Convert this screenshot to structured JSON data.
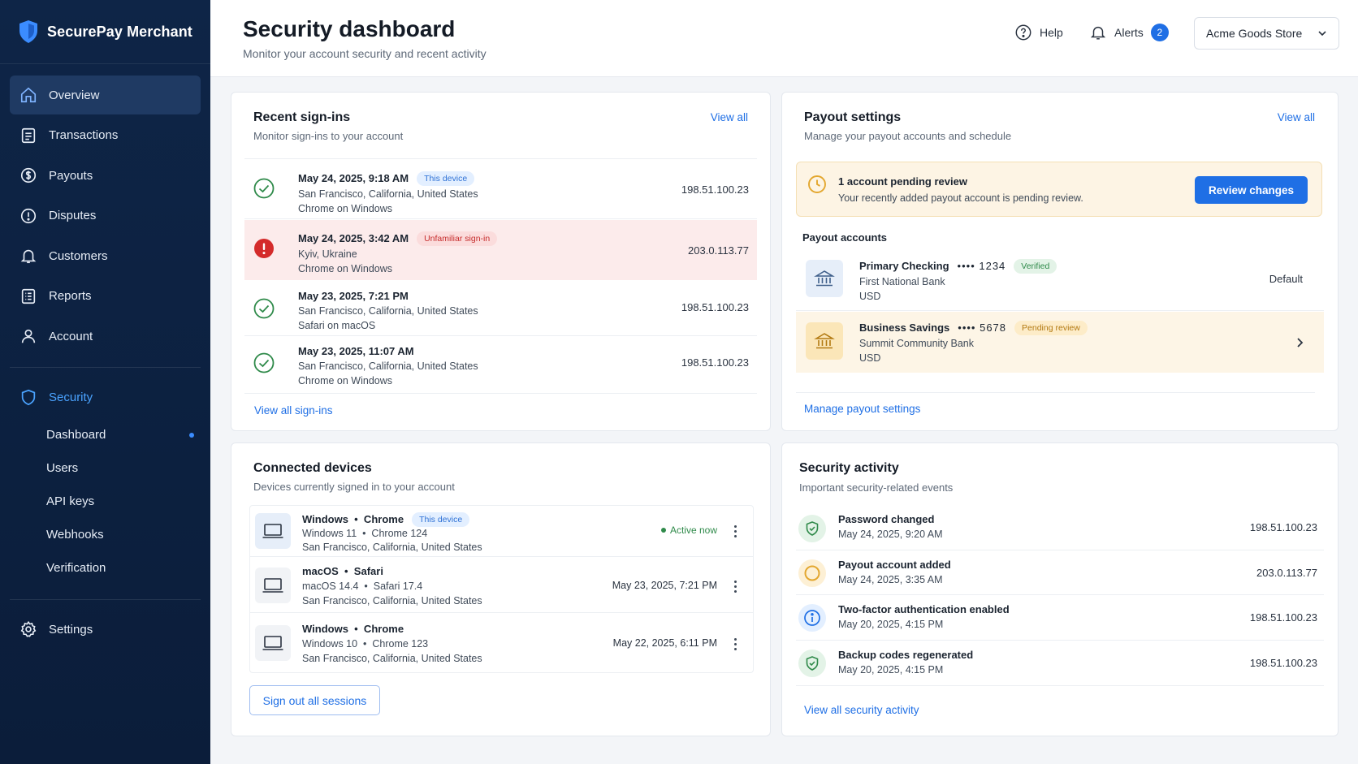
{
  "brand": {
    "name": "SecurePay Merchant"
  },
  "nav": {
    "items": [
      {
        "label": "Overview",
        "icon": "home-icon"
      },
      {
        "label": "Transactions",
        "icon": "receipt-icon"
      },
      {
        "label": "Payouts",
        "icon": "payout-icon"
      },
      {
        "label": "Disputes",
        "icon": "alert-circle-icon"
      },
      {
        "label": "Customers",
        "icon": "bell-user-icon"
      },
      {
        "label": "Reports",
        "icon": "report-icon"
      },
      {
        "label": "Account",
        "icon": "user-icon"
      }
    ],
    "security": {
      "label": "Security",
      "sub": [
        "Dashboard",
        "Users",
        "API keys",
        "Webhooks",
        "Verification"
      ]
    },
    "settings": "Settings"
  },
  "header": {
    "title": "Security dashboard",
    "subtitle": "Monitor your account security and recent activity",
    "help": "Help",
    "alerts": "Alerts",
    "alerts_count": "2",
    "store": "Acme Goods Store"
  },
  "signins": {
    "title": "Recent sign-ins",
    "subtitle": "Monitor sign-ins to your account",
    "view_all": "View all",
    "footer_link": "View all sign-ins",
    "rows": [
      {
        "time": "May 24, 2025, 9:18 AM",
        "tag": "This device",
        "location": "San Francisco, California, United States",
        "client": "Chrome on Windows",
        "ip": "198.51.100.23"
      },
      {
        "time": "May 24, 2025, 3:42 AM",
        "tag": "Unfamiliar sign-in",
        "location": "Kyiv, Ukraine",
        "client": "Chrome on Windows",
        "ip": "203.0.113.77"
      },
      {
        "time": "May 23, 2025, 7:21 PM",
        "tag": "",
        "location": "San Francisco, California, United States",
        "client": "Safari on macOS",
        "ip": "198.51.100.23"
      },
      {
        "time": "May 23, 2025, 11:07 AM",
        "tag": "",
        "location": "San Francisco, California, United States",
        "client": "Chrome on Windows",
        "ip": "198.51.100.23"
      }
    ]
  },
  "payout": {
    "title": "Payout settings",
    "subtitle": "Manage your payout accounts and schedule",
    "view_all": "View all",
    "alert_title": "1 account pending review",
    "alert_text": "Your recently added payout account is pending review.",
    "review_btn": "Review changes",
    "accounts_label": "Payout accounts",
    "accounts": [
      {
        "name": "Primary Checking",
        "mask": "•••• 1234",
        "tag": "Verified",
        "bank": "First National Bank",
        "currency": "USD",
        "right": "Default"
      },
      {
        "name": "Business Savings",
        "mask": "•••• 5678",
        "tag": "Pending review",
        "bank": "Summit Community Bank",
        "currency": "USD"
      }
    ],
    "footer_link": "Manage payout settings"
  },
  "devices": {
    "title": "Connected devices",
    "subtitle": "Devices currently signed in to your account",
    "rows": [
      {
        "name": "Windows  •  Chrome",
        "tag": "This device",
        "detail": "Windows 11  •  Chrome 124",
        "location": "San Francisco, California, United States",
        "status": "Active now"
      },
      {
        "name": "macOS  •  Safari",
        "tag": "",
        "detail": "macOS 14.4  •  Safari 17.4",
        "location": "San Francisco, California, United States",
        "status": "May 23, 2025, 7:21 PM"
      },
      {
        "name": "Windows  •  Chrome",
        "tag": "",
        "detail": "Windows 10  •  Chrome 123",
        "location": "San Francisco, California, United States",
        "status": "May 22, 2025, 6:11 PM"
      }
    ],
    "signout_btn": "Sign out all sessions"
  },
  "activity": {
    "title": "Security activity",
    "subtitle": "Important security-related events",
    "rows": [
      {
        "event": "Password changed",
        "time": "May 24, 2025, 9:20 AM",
        "ip": "198.51.100.23",
        "icon": "shield-check-icon"
      },
      {
        "event": "Payout account added",
        "time": "May 24, 2025, 3:35 AM",
        "ip": "203.0.113.77",
        "icon": "circle-warning-icon"
      },
      {
        "event": "Two-factor authentication enabled",
        "time": "May 20, 2025, 4:15 PM",
        "ip": "198.51.100.23",
        "icon": "info-icon"
      },
      {
        "event": "Backup codes regenerated",
        "time": "May 20, 2025, 4:15 PM",
        "ip": "198.51.100.23",
        "icon": "shield-check-icon"
      }
    ],
    "footer_link": "View all security activity"
  },
  "colors": {
    "accent": "#1f6fe5",
    "sidebar": "#0e2547",
    "danger": "#d42b2b",
    "success": "#2f8a4a",
    "warning": "#e3a72f"
  }
}
